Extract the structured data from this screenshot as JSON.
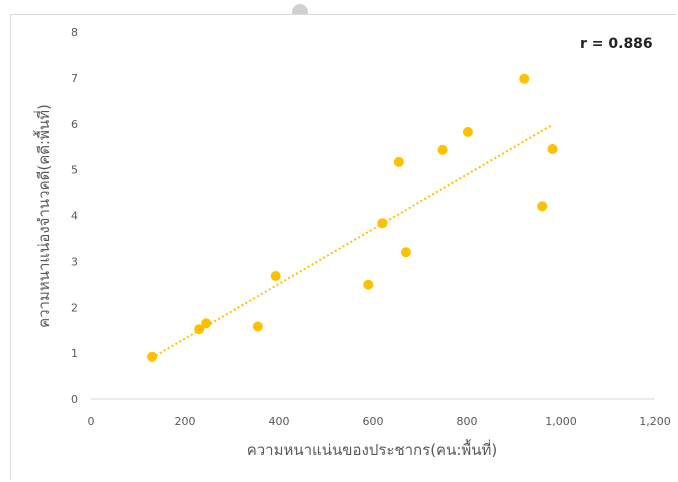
{
  "chart_data": {
    "type": "scatter",
    "title": "",
    "xlabel": "ความหนาแน่นของประชากร(คน:พื้นที่)",
    "ylabel": "ความหนาแน่องจำนวคดี(คดี:พื้นที่)",
    "xlim": [
      0,
      1200
    ],
    "ylim": [
      0,
      8
    ],
    "x_ticks": [
      "0",
      "200",
      "400",
      "600",
      "800",
      "1,000",
      "1,200"
    ],
    "y_ticks": [
      "0",
      "1",
      "2",
      "3",
      "4",
      "5",
      "6",
      "7",
      "8"
    ],
    "x_tick_values": [
      0,
      200,
      400,
      600,
      800,
      1000,
      1200
    ],
    "y_tick_values": [
      0,
      1,
      2,
      3,
      4,
      5,
      6,
      7,
      8
    ],
    "annotation": "r = 0.886",
    "points": [
      {
        "x": 130,
        "y": 0.92
      },
      {
        "x": 230,
        "y": 1.52
      },
      {
        "x": 245,
        "y": 1.65
      },
      {
        "x": 355,
        "y": 1.58
      },
      {
        "x": 393,
        "y": 2.68
      },
      {
        "x": 590,
        "y": 2.49
      },
      {
        "x": 620,
        "y": 3.83
      },
      {
        "x": 655,
        "y": 5.17
      },
      {
        "x": 670,
        "y": 3.2
      },
      {
        "x": 748,
        "y": 5.43
      },
      {
        "x": 802,
        "y": 5.82
      },
      {
        "x": 922,
        "y": 6.98
      },
      {
        "x": 960,
        "y": 4.2
      },
      {
        "x": 982,
        "y": 5.45
      }
    ],
    "trendline": {
      "x": [
        130,
        982
      ],
      "y": [
        0.9,
        5.98
      ]
    },
    "grid": false,
    "colors": {
      "points": "#ffc000",
      "trendline": "#ffc000",
      "axis": "#d9d9d9"
    }
  }
}
